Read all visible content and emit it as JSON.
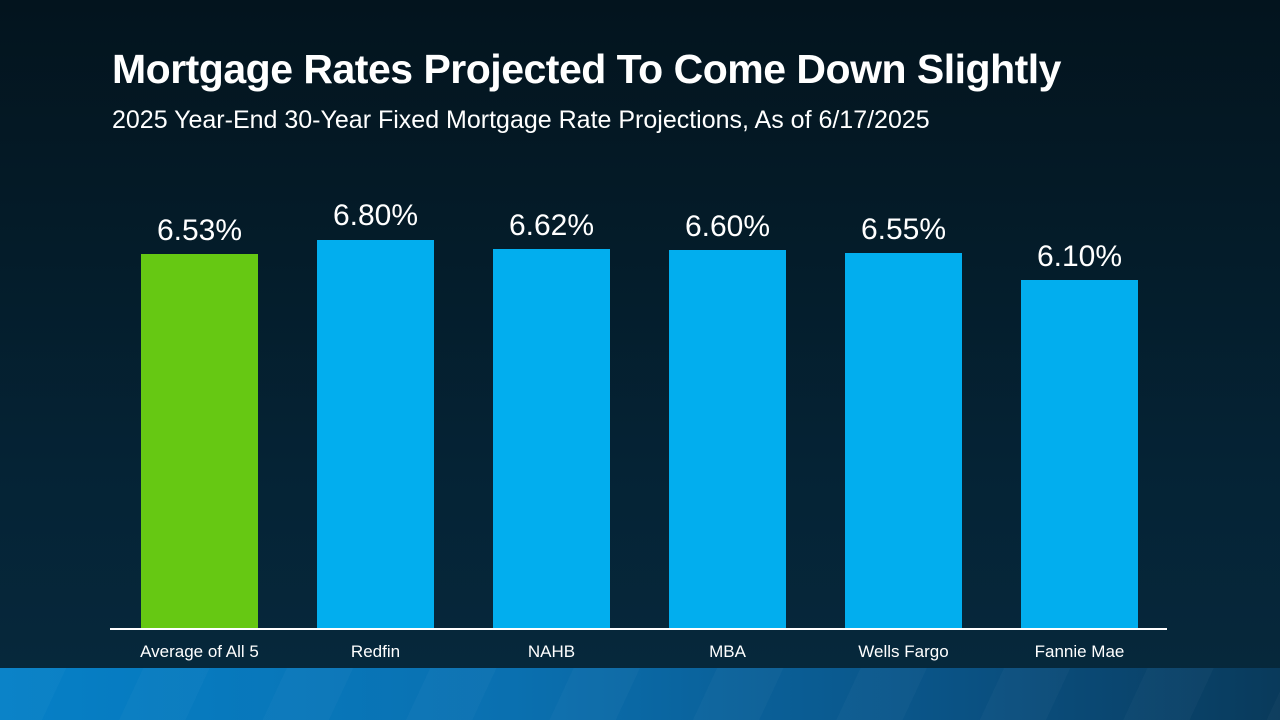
{
  "header": {
    "title": "Mortgage Rates Projected To Come Down Slightly",
    "subtitle": "2025 Year-End 30-Year Fixed Mortgage Rate Projections, As of 6/17/2025"
  },
  "chart_data": {
    "type": "bar",
    "title": "2025 Year-End 30-Year Fixed Mortgage Rate Projections, As of 6/17/2025",
    "categories": [
      "Average of All 5",
      "Redfin",
      "NAHB",
      "MBA",
      "Wells Fargo",
      "Fannie Mae"
    ],
    "values": [
      6.53,
      6.8,
      6.62,
      6.6,
      6.55,
      6.1
    ],
    "value_labels": [
      "6.53%",
      "6.80%",
      "6.62%",
      "6.60%",
      "6.55%",
      "6.10%"
    ],
    "bar_colors": [
      "#66c813",
      "#02aeee",
      "#02aeee",
      "#02aeee",
      "#02aeee",
      "#02aeee"
    ],
    "xlabel": "",
    "ylabel": "",
    "ylim": [
      0.3,
      6.8
    ],
    "grid": false,
    "legend": false,
    "value_label_position": "above-bar",
    "baseline_axis_color": "#ffffff"
  },
  "colors": {
    "background_top": "#03141e",
    "background_bottom": "#06293d",
    "accent_green": "#66c813",
    "accent_blue": "#02aeee",
    "footer_gradient_left": "#0580c7",
    "footer_gradient_right": "#093a5b",
    "axis_line": "#ffffff",
    "text": "#ffffff"
  }
}
